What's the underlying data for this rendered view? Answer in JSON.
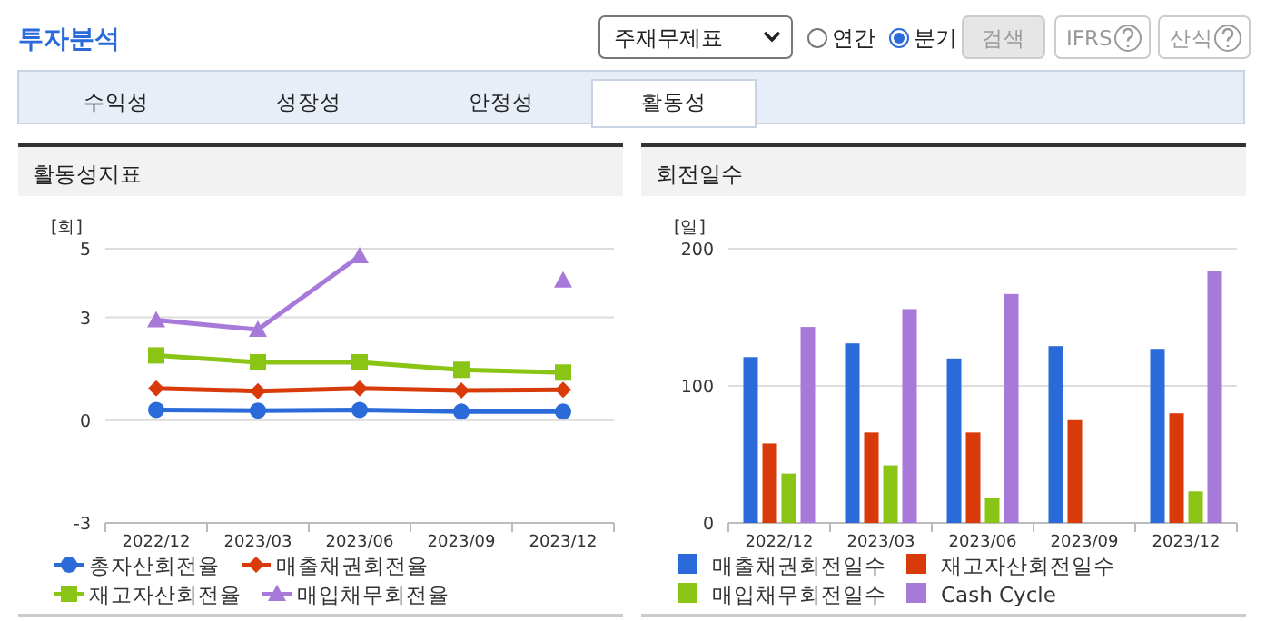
{
  "chart_data": [
    {
      "type": "other",
      "title": "투자분석",
      "annotations": [
        "주재무제표",
        "연간",
        "분기",
        "검색",
        "IFRS",
        "산식",
        "수익성",
        "성장성",
        "안정성",
        "활동성"
      ]
    },
    {
      "type": "line",
      "title": "활동성지표",
      "ylabel": "[회]",
      "categories": [
        "2022/12",
        "2023/03",
        "2023/06",
        "2023/09",
        "2023/12"
      ],
      "ylim": [
        -3,
        5
      ],
      "yticks": [
        -3,
        0,
        3,
        5
      ],
      "grid": "y",
      "legend": "bottom",
      "series": [
        {
          "name": "총자산회전율",
          "color": "#2a6ad9",
          "marker": "circle",
          "values": [
            0.3,
            0.28,
            0.3,
            0.25,
            0.25
          ]
        },
        {
          "name": "매출채권회전율",
          "color": "#d93a0a",
          "marker": "diamond",
          "values": [
            0.93,
            0.85,
            0.93,
            0.87,
            0.89
          ]
        },
        {
          "name": "재고자산회전율",
          "color": "#8ac414",
          "marker": "square",
          "values": [
            1.89,
            1.69,
            1.69,
            1.47,
            1.39
          ]
        },
        {
          "name": "매입채무회전율",
          "color": "#a77ad9",
          "marker": "triangle",
          "values": [
            2.92,
            2.64,
            4.79,
            null,
            4.08
          ]
        }
      ]
    },
    {
      "type": "bar",
      "title": "회전일수",
      "ylabel": "[일]",
      "categories": [
        "2022/12",
        "2023/03",
        "2023/06",
        "2023/09",
        "2023/12"
      ],
      "ylim": [
        0,
        200
      ],
      "yticks": [
        0,
        100,
        200
      ],
      "grid": "y",
      "legend": "bottom",
      "series": [
        {
          "name": "매출채권회전일수",
          "color": "#2a6ad9",
          "values": [
            121,
            131,
            120,
            129,
            127
          ]
        },
        {
          "name": "재고자산회전일수",
          "color": "#d93a0a",
          "values": [
            58,
            66,
            66,
            75,
            80
          ]
        },
        {
          "name": "매입채무회전일수",
          "color": "#8ac414",
          "values": [
            36,
            42,
            18,
            null,
            23
          ]
        },
        {
          "name": "Cash Cycle",
          "color": "#a77ad9",
          "values": [
            143,
            156,
            167,
            null,
            184
          ]
        }
      ]
    }
  ]
}
